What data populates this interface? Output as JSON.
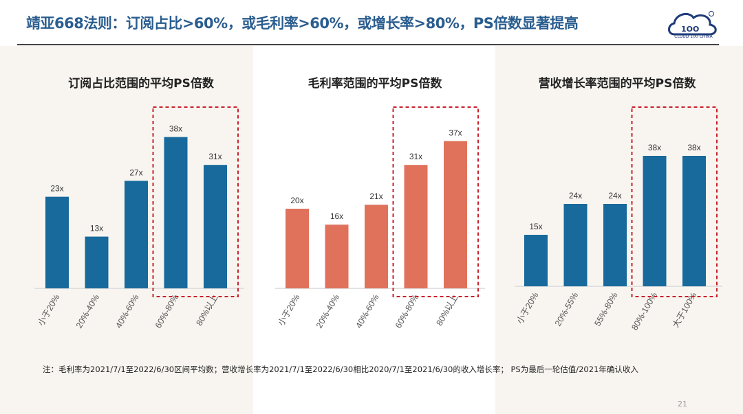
{
  "header": {
    "title": "靖亚668法则：订阅占比>60%，或毛利率>60%，或增长率>80%，PS倍数显著提高",
    "logo_text": "CLOUD 100 CHINA"
  },
  "colors": {
    "blue": "#176a9b",
    "orange": "#e0725c",
    "highlight": "#c8202a"
  },
  "chart_data": [
    {
      "type": "bar",
      "title": "订阅占比范围的平均PS倍数",
      "categories": [
        "小于20%",
        "20%-40%",
        "40%-60%",
        "60%-80%",
        "80%以上"
      ],
      "values": [
        23,
        13,
        27,
        38,
        31
      ],
      "labels": [
        "23x",
        "13x",
        "27x",
        "38x",
        "31x"
      ],
      "highlighted": [
        3,
        4
      ],
      "color": "#176a9b",
      "ylim": [
        0,
        40
      ]
    },
    {
      "type": "bar",
      "title": "毛利率范围的平均PS倍数",
      "categories": [
        "小于20%",
        "20%-40%",
        "40%-60%",
        "60%-80%",
        "80%以上"
      ],
      "values": [
        20,
        16,
        21,
        31,
        37
      ],
      "labels": [
        "20x",
        "16x",
        "21x",
        "31x",
        "37x"
      ],
      "highlighted": [
        3,
        4
      ],
      "color": "#e0725c",
      "ylim": [
        0,
        40
      ]
    },
    {
      "type": "bar",
      "title": "营收增长率范围的平均PS倍数",
      "categories": [
        "小于20%",
        "20%-55%",
        "55%-80%",
        "80%-100%",
        "大于100%"
      ],
      "values": [
        15,
        24,
        24,
        38,
        38
      ],
      "labels": [
        "15x",
        "24x",
        "24x",
        "38x",
        "38x"
      ],
      "highlighted": [
        3,
        4
      ],
      "color": "#176a9b",
      "ylim": [
        0,
        40
      ]
    }
  ],
  "footer": {
    "note": "注：毛利率为2021/7/1至2022/6/30区间平均数；营收增长率为2021/7/1至2022/6/30相比2020/7/1至2021/6/30的收入增长率； PS为最后一轮估值/2021年确认收入",
    "page": "21"
  }
}
